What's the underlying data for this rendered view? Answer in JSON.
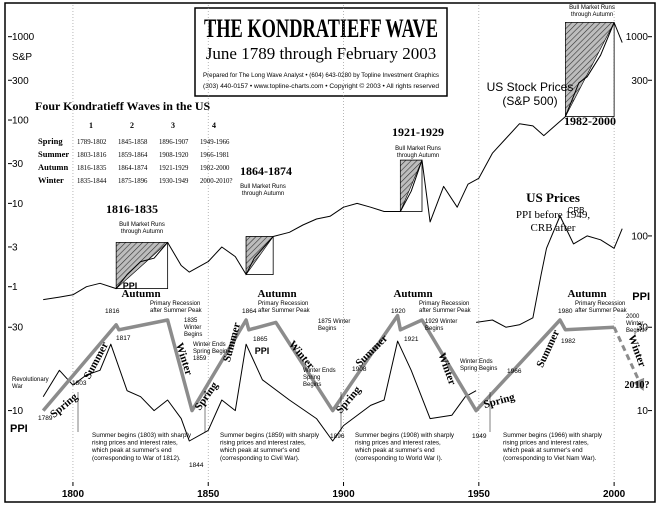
{
  "chart_data": {
    "type": "line",
    "title": "THE KONDRATIEFF WAVE",
    "subtitle": "June 1789 through February 2003",
    "xlim": [
      1776,
      2014
    ],
    "xticks": [
      1800,
      1850,
      1900,
      1950,
      2000
    ],
    "ylim": [
      0.003,
      2400
    ],
    "yticks": [
      1,
      3,
      10,
      30,
      100,
      300,
      1000
    ],
    "log_y": true,
    "y2lim": [
      3.2,
      2100
    ],
    "y2ticks": [
      10,
      30,
      100
    ],
    "log_y2": true,
    "grid": true,
    "series": [
      {
        "name": "S&P",
        "color": "#000000",
        "line_width": 1,
        "axis": "y",
        "x": [
          1789,
          1795,
          1800,
          1805,
          1810,
          1816,
          1820,
          1825,
          1830,
          1835,
          1840,
          1843,
          1850,
          1855,
          1860,
          1864,
          1867,
          1874,
          1880,
          1885,
          1890,
          1895,
          1900,
          1905,
          1910,
          1915,
          1921,
          1925,
          1929,
          1932,
          1937,
          1942,
          1946,
          1950,
          1955,
          1960,
          1965,
          1970,
          1974,
          1982,
          1987,
          1990,
          1995,
          2000,
          2003
        ],
        "values": [
          0.7,
          0.75,
          0.8,
          1.0,
          1.1,
          0.95,
          1.4,
          2.0,
          2.2,
          3.4,
          1.8,
          1.5,
          2.0,
          3.0,
          2.3,
          1.4,
          2.2,
          4.0,
          4.5,
          5.5,
          6.5,
          7,
          9,
          10,
          9,
          8,
          8,
          14,
          33,
          6,
          16,
          9,
          17,
          20,
          40,
          60,
          90,
          85,
          65,
          110,
          280,
          330,
          600,
          1480,
          850
        ]
      },
      {
        "name": "PPI",
        "color": "#000000",
        "line_width": 1,
        "axis": "y2",
        "x": [
          1789,
          1795,
          1800,
          1805,
          1810,
          1814,
          1820,
          1825,
          1830,
          1835,
          1840,
          1843,
          1850,
          1855,
          1860,
          1864,
          1870,
          1880,
          1890,
          1896,
          1900,
          1910,
          1915,
          1920,
          1925,
          1932,
          1940,
          1945,
          1949
        ],
        "values": [
          12,
          17,
          14,
          16,
          17,
          24,
          13,
          12,
          10,
          11.5,
          9,
          6.7,
          7.7,
          11.5,
          10,
          24,
          15,
          11.5,
          9,
          6.7,
          8.2,
          10.7,
          11.5,
          25,
          17,
          9,
          9.4,
          12,
          13
        ]
      },
      {
        "name": "CRB",
        "color": "#000000",
        "line_width": 1,
        "axis": "y2",
        "x": [
          1949,
          1955,
          1960,
          1965,
          1970,
          1973,
          1975,
          1980,
          1985,
          1990,
          1995,
          2000,
          2003
        ],
        "values": [
          32,
          33,
          30,
          31,
          34,
          60,
          85,
          130,
          90,
          100,
          95,
          85,
          110
        ]
      },
      {
        "color": "#8c8c8c",
        "line_width": 3.5,
        "axis": "y2",
        "x": [
          1789,
          1816,
          1817,
          1835,
          1844,
          1864,
          1865,
          1875,
          1896,
          1920,
          1921,
          1929,
          1949,
          1980,
          1982,
          2000
        ],
        "values": [
          10,
          31,
          29,
          33,
          10,
          33,
          29,
          32,
          10,
          35,
          29,
          33,
          10,
          33,
          29,
          30
        ]
      },
      {
        "color": "#8c8c8c",
        "line_width": 3,
        "axis": "y2",
        "dashed": true,
        "x": [
          2000,
          2010
        ],
        "values": [
          30,
          13.9
        ]
      }
    ],
    "bull_markets": [
      {
        "label": "1816-1835",
        "note": [
          "Bull Market Runs",
          "through Autumn"
        ],
        "start": 1816,
        "end": 1835
      },
      {
        "label": "1864-1874",
        "note": [
          "Bull Market Runs",
          "through Autumn"
        ],
        "start": 1864,
        "end": 1874
      },
      {
        "label": "1921-1929",
        "note": [
          "Bull Market Runs",
          "through Autumn"
        ],
        "start": 1921,
        "end": 1929
      },
      {
        "label": "1982-2000",
        "note": [
          "Bull Market Runs",
          "through Autumn"
        ],
        "start": 1982,
        "end": 2000
      }
    ]
  },
  "credits": [
    "Prepared for The Long Wave Analyst • (604) 643-0280 by Topline Investment Graphics",
    "(303) 440-0157 • www.topline-charts.com • Copyright © 2003 • All rights reserved"
  ],
  "table": {
    "title": "Four Kondratieff Waves in the US",
    "columns": [
      "1",
      "2",
      "3",
      "4"
    ],
    "rows": [
      [
        "Spring",
        "1789-1802",
        "1845-1858",
        "1896-1907",
        "1949-1966"
      ],
      [
        "Summer",
        "1803-1816",
        "1859-1864",
        "1908-1920",
        "1966-1981"
      ],
      [
        "Autumn",
        "1816-1835",
        "1864-1874",
        "1921-1929",
        "1982-2000"
      ],
      [
        "Winter",
        "1835-1844",
        "1875-1896",
        "1930-1949",
        "2000-2010?"
      ]
    ]
  },
  "annotations": [
    [
      "Autumn"
    ],
    [
      "Summer"
    ],
    [
      "Spring"
    ],
    [
      "Winter"
    ],
    [
      "Autumn"
    ],
    [
      "Summer"
    ],
    [
      "Spring"
    ],
    [
      "Winter"
    ],
    [
      "Autumn"
    ],
    [
      "Summer"
    ],
    [
      "Spring"
    ],
    [
      "Winter"
    ],
    [
      "Autumn"
    ],
    [
      "Summer"
    ],
    [
      "Spring"
    ],
    [
      "Winter"
    ],
    [
      "Primary Recession",
      "after Summer Peak"
    ],
    [
      "Primary Recession",
      "after Summer Peak"
    ],
    [
      "Primary Recession",
      "after Summer Peak"
    ],
    [
      "Primary Recession",
      "after Summer Peak"
    ],
    [
      "1835",
      "Winter",
      "Begins"
    ],
    [
      "1875 Winter",
      "Begins"
    ],
    [
      "1929 Winter",
      "Begins"
    ],
    [
      "2000",
      "Winter",
      "Begins?"
    ],
    [
      "1816"
    ],
    [
      "1817"
    ],
    [
      "1864"
    ],
    [
      "1865"
    ],
    [
      "1920"
    ],
    [
      "1921"
    ],
    [
      "1980"
    ],
    [
      "1982"
    ],
    [
      "Revolutionary",
      "War"
    ],
    [
      "1789"
    ],
    [
      "1803"
    ],
    [
      "Winter Ends",
      "Spring Begins",
      "1859"
    ],
    [
      "1844"
    ],
    [
      "Winter Ends",
      "Spring",
      "Begins"
    ],
    [
      "1908"
    ],
    [
      "1896"
    ],
    [
      "Winter Ends",
      "Spring Begins"
    ],
    [
      "1966"
    ],
    [
      "1949"
    ],
    [
      "2010?"
    ],
    [
      "US Stock Prices",
      "(S&P 500)"
    ],
    [
      "US Prices"
    ],
    [
      "PPI before 1949,",
      "CRB after"
    ]
  ],
  "notes": [
    [
      "Summer begins (1803) with sharply",
      "rising prices and interest rates,",
      "which peak at summer's end",
      "(corresponding to War of 1812)."
    ],
    [
      "Summer begins (1859) with sharply",
      "rising prices and interest rates,",
      "which peak at summer's end",
      "(corresponding to Civil War)."
    ],
    [
      "Summer begins (1908) with sharply",
      "rising prices and interest rates,",
      "which peak at summer's end",
      "(corresponding to World War I)."
    ],
    [
      "Summer begins (1966) with sharply",
      "rising prices and interest rates,",
      "which peak at summer's end",
      "(corresponding to Viet Nam War)."
    ]
  ]
}
